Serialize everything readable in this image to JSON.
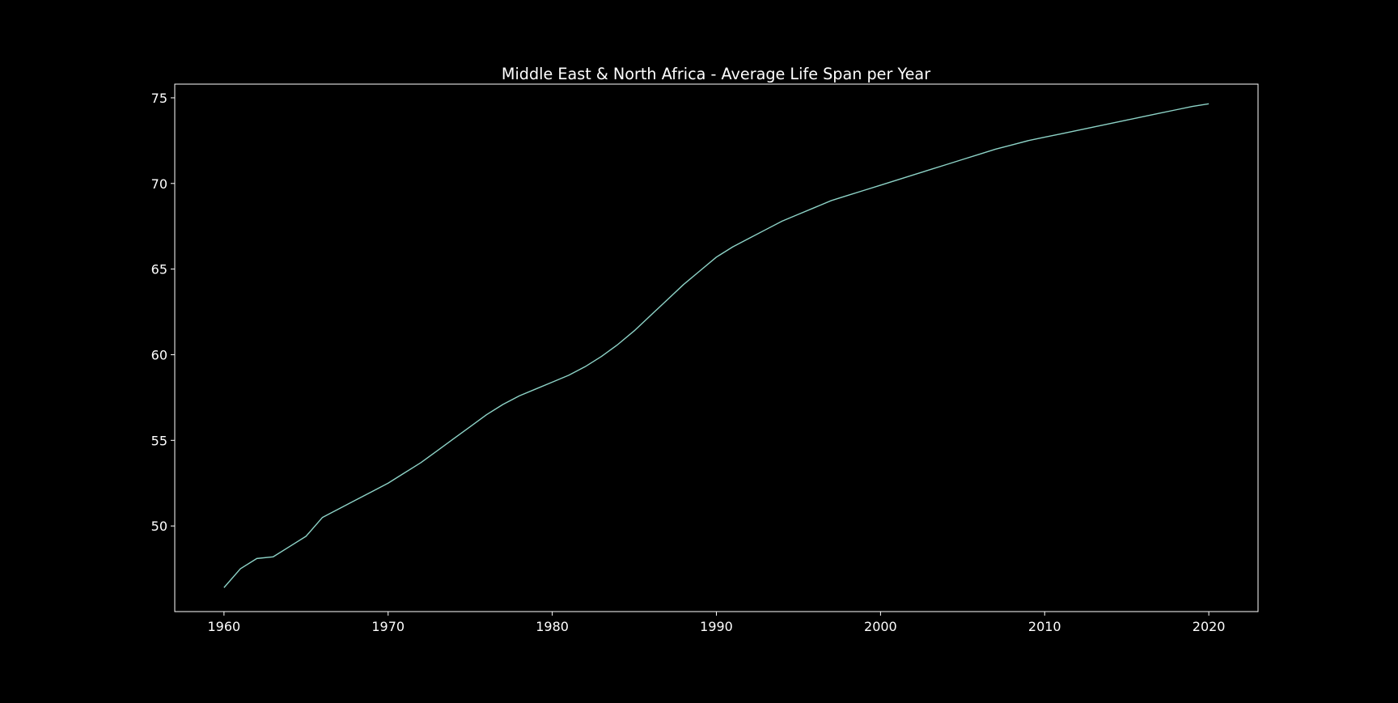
{
  "chart_data": {
    "type": "line",
    "title": "Middle East & North Africa - Average Life Span per Year",
    "xlabel": "",
    "ylabel": "",
    "xlim": [
      1957,
      2023
    ],
    "ylim": [
      45,
      75.8
    ],
    "xticks": [
      1960,
      1970,
      1980,
      1990,
      2000,
      2010,
      2020
    ],
    "yticks": [
      50,
      55,
      60,
      65,
      70,
      75
    ],
    "grid": false,
    "legend": "none",
    "colors": {
      "background": "#000000",
      "axes": "#ffffff",
      "line": "#8dd3c7"
    },
    "series": [
      {
        "x": [
          1960,
          1961,
          1962,
          1963,
          1964,
          1965,
          1966,
          1967,
          1968,
          1969,
          1970,
          1971,
          1972,
          1973,
          1974,
          1975,
          1976,
          1977,
          1978,
          1979,
          1980,
          1981,
          1982,
          1983,
          1984,
          1985,
          1986,
          1987,
          1988,
          1989,
          1990,
          1991,
          1992,
          1993,
          1994,
          1995,
          1996,
          1997,
          1998,
          1999,
          2000,
          2001,
          2002,
          2003,
          2004,
          2005,
          2006,
          2007,
          2008,
          2009,
          2010,
          2011,
          2012,
          2013,
          2014,
          2015,
          2016,
          2017,
          2018,
          2019,
          2020
        ],
        "y": [
          46.4,
          47.5,
          48.1,
          48.2,
          48.8,
          49.4,
          50.5,
          51.0,
          51.5,
          52.0,
          52.5,
          53.1,
          53.7,
          54.4,
          55.1,
          55.8,
          56.5,
          57.1,
          57.6,
          58.0,
          58.4,
          58.8,
          59.3,
          59.9,
          60.6,
          61.4,
          62.3,
          63.2,
          64.1,
          64.9,
          65.7,
          66.3,
          66.8,
          67.3,
          67.8,
          68.2,
          68.6,
          69.0,
          69.3,
          69.6,
          69.9,
          70.2,
          70.5,
          70.8,
          71.1,
          71.4,
          71.7,
          72.0,
          72.25,
          72.5,
          72.7,
          72.9,
          73.1,
          73.3,
          73.5,
          73.7,
          73.9,
          74.1,
          74.3,
          74.5,
          74.65
        ]
      }
    ]
  }
}
